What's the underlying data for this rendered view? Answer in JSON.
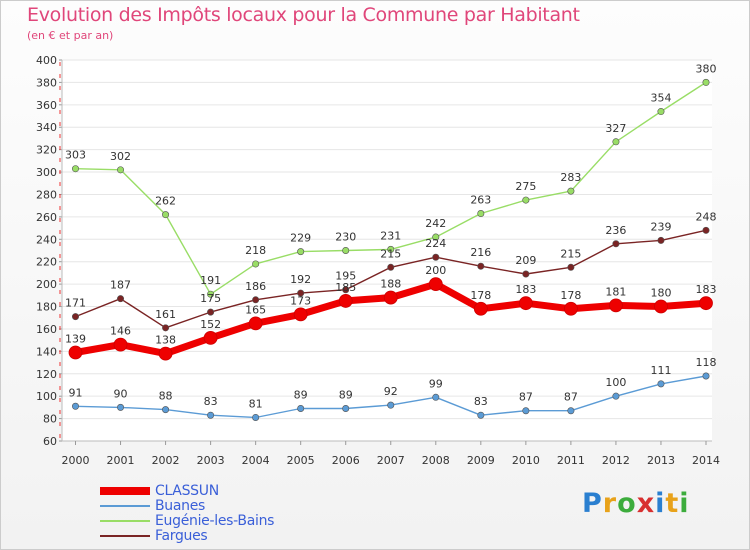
{
  "header": {
    "title": "Evolution des Impôts locaux pour la Commune par Habitant",
    "subtitle": "(en € et par an)"
  },
  "brand": {
    "text": "Proxiti"
  },
  "chart_data": {
    "type": "line",
    "title": "Evolution des Impôts locaux pour la Commune par Habitant",
    "subtitle": "(en € et par an)",
    "xlabel": "",
    "ylabel": "",
    "x": [
      "2000",
      "2001",
      "2002",
      "2003",
      "2004",
      "2005",
      "2006",
      "2007",
      "2008",
      "2009",
      "2010",
      "2011",
      "2012",
      "2013",
      "2014"
    ],
    "ylim": [
      60,
      400
    ],
    "yticks": [
      60,
      80,
      100,
      120,
      140,
      160,
      180,
      200,
      220,
      240,
      260,
      280,
      300,
      320,
      340,
      360,
      380,
      400
    ],
    "grid": "horizontal",
    "legend_position": "bottom-left",
    "series": [
      {
        "name": "CLASSUN",
        "color": "#ee0000",
        "emphasis": true,
        "values": [
          139,
          146,
          138,
          152,
          165,
          173,
          185,
          188,
          200,
          178,
          183,
          178,
          181,
          180,
          183
        ]
      },
      {
        "name": "Buanes",
        "color": "#5b9bd5",
        "emphasis": false,
        "values": [
          91,
          90,
          88,
          83,
          81,
          89,
          89,
          92,
          99,
          83,
          87,
          87,
          100,
          111,
          118
        ]
      },
      {
        "name": "Eugénie-les-Bains",
        "color": "#99dd66",
        "emphasis": false,
        "values": [
          303,
          302,
          262,
          191,
          218,
          229,
          230,
          231,
          242,
          263,
          275,
          283,
          327,
          354,
          380
        ]
      },
      {
        "name": "Fargues",
        "color": "#7a2424",
        "emphasis": false,
        "values": [
          171,
          187,
          161,
          175,
          186,
          192,
          195,
          215,
          224,
          216,
          209,
          215,
          236,
          239,
          248
        ]
      }
    ]
  }
}
